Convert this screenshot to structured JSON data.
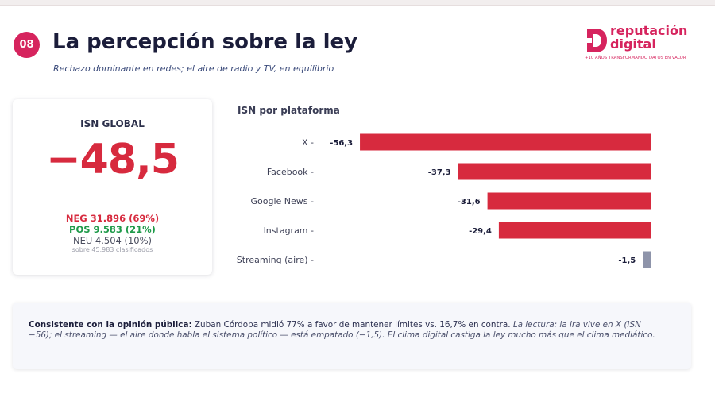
{
  "header": {
    "slide_number": "08",
    "title": "La percepción sobre la ley",
    "subtitle": "Rechazo dominante en redes; el aire de radio y TV, en equilibrio"
  },
  "logo": {
    "line1": "reputación",
    "line2": "digital",
    "tagline": "+10 AÑOS TRANSFORMANDO DATOS EN VALOR"
  },
  "isn_card": {
    "label": "ISN GLOBAL",
    "value": "−48,5",
    "neg": "NEG 31.896 (69%)",
    "pos": "POS 9.583 (21%)",
    "neu": "NEU 4.504 (10%)",
    "note": "sobre 45.983 clasificados"
  },
  "chart_data": {
    "type": "bar",
    "orientation": "horizontal",
    "title": "ISN por plataforma",
    "categories": [
      "X",
      "Facebook",
      "Google News",
      "Instagram",
      "Streaming (aire)"
    ],
    "values": [
      -56.3,
      -37.3,
      -31.6,
      -29.4,
      -1.5
    ],
    "value_labels": [
      "-56,3",
      "-37,3",
      "-31,6",
      "-29,4",
      "-1,5"
    ],
    "colors": [
      "#d72a3e",
      "#d72a3e",
      "#d72a3e",
      "#d72a3e",
      "#8e94aa"
    ],
    "xlim": [
      -61,
      0
    ],
    "grid": false
  },
  "callout": {
    "bold": "Consistente con la opinión pública:",
    "plain": " Zuban Córdoba midió 77% a favor de mantener límites vs. 16,7% en contra. ",
    "italic": "La lectura: la ira vive en X (ISN −56); el streaming — el aire donde habla el sistema político — está empatado (−1,5). El clima digital castiga la ley mucho más que el clima mediático."
  }
}
